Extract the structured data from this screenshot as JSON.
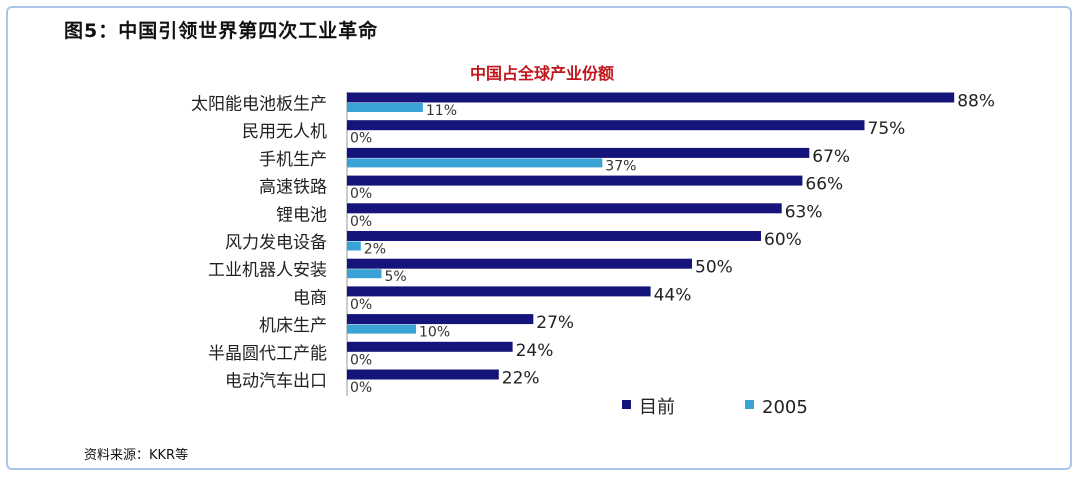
{
  "figure_title": "图5：中国引领世界第四次工业革命",
  "source_note": "资料来源：KKR等",
  "chart_data": {
    "type": "bar",
    "orientation": "horizontal",
    "title": "中国占全球产业份额",
    "categories": [
      "太阳能电池板生产",
      "民用无人机",
      "手机生产",
      "高速铁路",
      "锂电池",
      "风力发电设备",
      "工业机器人安装",
      "电商",
      "机床生产",
      "半晶圆代工产能",
      "电动汽车出口"
    ],
    "series": [
      {
        "name": "目前",
        "color": "#14147a",
        "values": [
          88,
          75,
          67,
          66,
          63,
          60,
          50,
          44,
          27,
          24,
          22
        ],
        "labels": [
          "88%",
          "75%",
          "67%",
          "66%",
          "63%",
          "60%",
          "50%",
          "44%",
          "27%",
          "24%",
          "22%"
        ]
      },
      {
        "name": "2005",
        "color": "#3aa3d6",
        "values": [
          11,
          0,
          37,
          0,
          0,
          2,
          5,
          0,
          10,
          0,
          0
        ],
        "labels": [
          "11%",
          "0%",
          "37%",
          "0%",
          "0%",
          "2%",
          "5%",
          "0%",
          "10%",
          "0%",
          "0%"
        ]
      }
    ],
    "xlim": [
      0,
      100
    ],
    "legend_position": "bottom-right",
    "grid": false
  }
}
